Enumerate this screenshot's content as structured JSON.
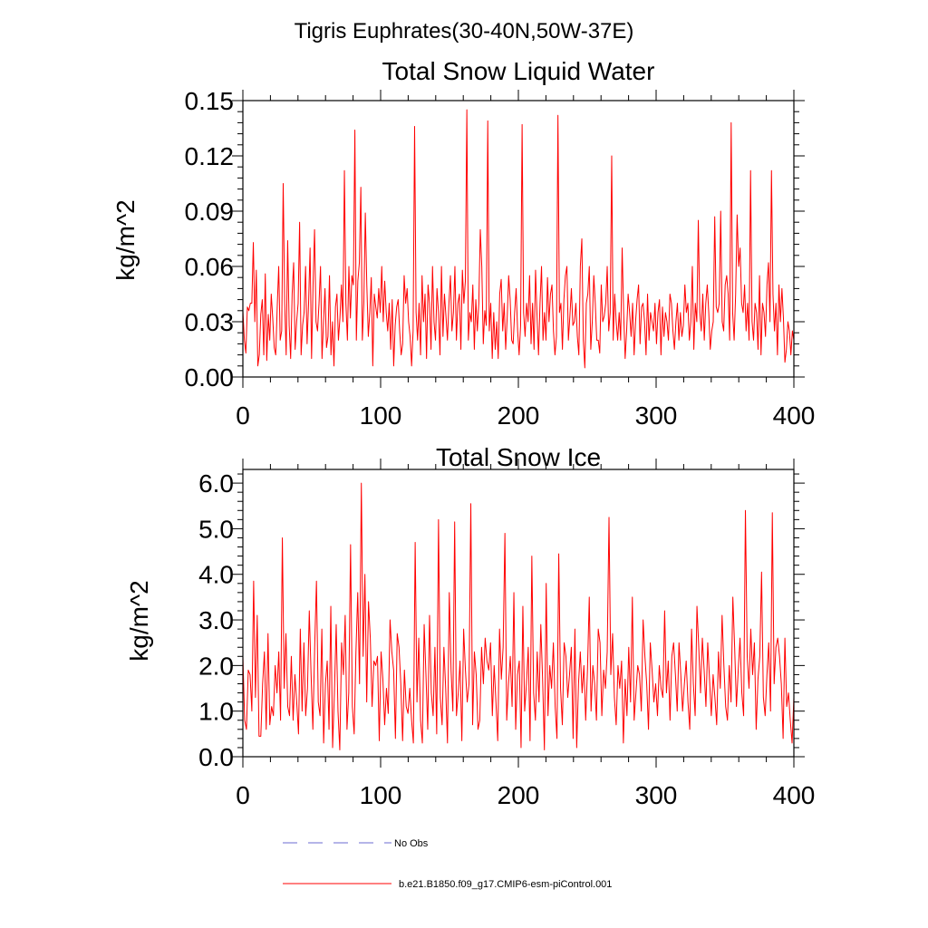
{
  "figure_title": "Tigris Euphrates(30-40N,50W-37E)",
  "chart_data": [
    {
      "type": "line",
      "title": "Total Snow Liquid Water",
      "xlabel": "",
      "ylabel": "kg/m^2",
      "xlim": [
        0,
        400
      ],
      "ylim": [
        0,
        0.15
      ],
      "xticks": [
        0,
        100,
        200,
        300,
        400
      ],
      "xtick_labels": [
        "0",
        "100",
        "200",
        "300",
        "400"
      ],
      "yticks": [
        0,
        0.03,
        0.06,
        0.09,
        0.12,
        0.15
      ],
      "ytick_labels": [
        "0.00",
        "0.03",
        "0.06",
        "0.09",
        "0.12",
        "0.15"
      ],
      "series": [
        {
          "name": "b.e21.B1850.f09_g17.CMIP6-esm-piControl.001",
          "color": "#ff0000",
          "values": [
            0.036,
            0.02,
            0.013,
            0.038,
            0.036,
            0.04,
            0.04,
            0.073,
            0.03,
            0.058,
            0.006,
            0.012,
            0.034,
            0.042,
            0.012,
            0.056,
            0.009,
            0.034,
            0.02,
            0.045,
            0.032,
            0.016,
            0.012,
            0.038,
            0.06,
            0.02,
            0.025,
            0.105,
            0.04,
            0.012,
            0.074,
            0.028,
            0.01,
            0.045,
            0.062,
            0.015,
            0.03,
            0.04,
            0.084,
            0.012,
            0.028,
            0.035,
            0.06,
            0.018,
            0.04,
            0.07,
            0.01,
            0.05,
            0.08,
            0.03,
            0.025,
            0.04,
            0.06,
            0.01,
            0.03,
            0.048,
            0.016,
            0.022,
            0.055,
            0.012,
            0.03,
            0.006,
            0.038,
            0.045,
            0.02,
            0.032,
            0.05,
            0.03,
            0.112,
            0.04,
            0.02,
            0.06,
            0.032,
            0.055,
            0.05,
            0.134,
            0.02,
            0.052,
            0.062,
            0.103,
            0.02,
            0.04,
            0.089,
            0.05,
            0.022,
            0.035,
            0.054,
            0.006,
            0.045,
            0.038,
            0.032,
            0.048,
            0.035,
            0.06,
            0.03,
            0.052,
            0.035,
            0.025,
            0.04,
            0.015,
            0.042,
            0.006,
            0.028,
            0.038,
            0.042,
            0.025,
            0.012,
            0.018,
            0.055,
            0.04,
            0.048,
            0.03,
            0.022,
            0.006,
            0.025,
            0.136,
            0.035,
            0.02,
            0.04,
            0.012,
            0.055,
            0.03,
            0.045,
            0.01,
            0.05,
            0.04,
            0.015,
            0.06,
            0.03,
            0.02,
            0.048,
            0.035,
            0.012,
            0.06,
            0.022,
            0.045,
            0.033,
            0.02,
            0.04,
            0.055,
            0.025,
            0.035,
            0.06,
            0.02,
            0.04,
            0.045,
            0.015,
            0.058,
            0.04,
            0.052,
            0.145,
            0.02,
            0.035,
            0.03,
            0.05,
            0.015,
            0.042,
            0.025,
            0.04,
            0.08,
            0.06,
            0.018,
            0.036,
            0.028,
            0.139,
            0.025,
            0.04,
            0.01,
            0.035,
            0.015,
            0.03,
            0.01,
            0.045,
            0.053,
            0.025,
            0.04,
            0.015,
            0.032,
            0.055,
            0.042,
            0.02,
            0.018,
            0.035,
            0.048,
            0.025,
            0.012,
            0.028,
            0.137,
            0.035,
            0.022,
            0.04,
            0.03,
            0.055,
            0.018,
            0.04,
            0.015,
            0.058,
            0.033,
            0.012,
            0.04,
            0.06,
            0.02,
            0.035,
            0.02,
            0.054,
            0.03,
            0.045,
            0.05,
            0.025,
            0.012,
            0.022,
            0.142,
            0.035,
            0.04,
            0.015,
            0.042,
            0.055,
            0.06,
            0.02,
            0.033,
            0.048,
            0.028,
            0.03,
            0.04,
            0.022,
            0.012,
            0.06,
            0.075,
            0.02,
            0.005,
            0.04,
            0.045,
            0.06,
            0.015,
            0.03,
            0.055,
            0.04,
            0.02,
            0.02,
            0.013,
            0.05,
            0.03,
            0.033,
            0.04,
            0.06,
            0.025,
            0.035,
            0.12,
            0.02,
            0.045,
            0.03,
            0.02,
            0.035,
            0.02,
            0.07,
            0.035,
            0.01,
            0.025,
            0.045,
            0.035,
            0.022,
            0.04,
            0.012,
            0.03,
            0.042,
            0.05,
            0.018,
            0.038,
            0.04,
            0.03,
            0.012,
            0.045,
            0.02,
            0.035,
            0.03,
            0.025,
            0.04,
            0.018,
            0.035,
            0.042,
            0.012,
            0.038,
            0.022,
            0.035,
            0.03,
            0.02,
            0.045,
            0.04,
            0.025,
            0.015,
            0.03,
            0.04,
            0.02,
            0.035,
            0.022,
            0.028,
            0.05,
            0.035,
            0.04,
            0.02,
            0.03,
            0.06,
            0.015,
            0.04,
            0.03,
            0.085,
            0.035,
            0.025,
            0.045,
            0.02,
            0.04,
            0.05,
            0.035,
            0.015,
            0.025,
            0.03,
            0.087,
            0.038,
            0.035,
            0.04,
            0.09,
            0.03,
            0.025,
            0.05,
            0.055,
            0.045,
            0.02,
            0.138,
            0.035,
            0.02,
            0.045,
            0.088,
            0.06,
            0.07,
            0.04,
            0.035,
            0.05,
            0.025,
            0.04,
            0.02,
            0.112,
            0.03,
            0.02,
            0.04,
            0.035,
            0.015,
            0.055,
            0.012,
            0.04,
            0.035,
            0.022,
            0.05,
            0.062,
            0.03,
            0.112,
            0.045,
            0.025,
            0.04,
            0.012,
            0.05,
            0.03,
            0.048,
            0.032,
            0.008,
            0.015,
            0.03,
            0.025,
            0.012,
            0.025,
            0.02
          ]
        }
      ]
    },
    {
      "type": "line",
      "title": "Total Snow Ice",
      "xlabel": "",
      "ylabel": "kg/m^2",
      "xlim": [
        0,
        400
      ],
      "ylim": [
        0,
        6.3
      ],
      "xticks": [
        0,
        100,
        200,
        300,
        400
      ],
      "xtick_labels": [
        "0",
        "100",
        "200",
        "300",
        "400"
      ],
      "yticks": [
        0,
        1,
        2,
        3,
        4,
        5,
        6
      ],
      "ytick_labels": [
        "0.0",
        "1.0",
        "2.0",
        "3.0",
        "4.0",
        "5.0",
        "6.0"
      ],
      "series": [
        {
          "name": "b.e21.B1850.f09_g17.CMIP6-esm-piControl.001",
          "color": "#ff0000",
          "values": [
            2.2,
            0.8,
            0.6,
            1.9,
            1.8,
            1.0,
            3.85,
            1.3,
            3.1,
            0.45,
            0.45,
            1.6,
            2.3,
            0.6,
            2.7,
            0.7,
            1.1,
            0.9,
            2.0,
            1.4,
            2.3,
            0.8,
            4.8,
            1.5,
            2.7,
            1.1,
            0.9,
            2.2,
            0.8,
            1.8,
            1.2,
            0.5,
            2.8,
            1.0,
            2.5,
            0.9,
            1.5,
            3.2,
            1.8,
            0.6,
            2.4,
            3.85,
            1.2,
            0.9,
            2.8,
            0.3,
            1.6,
            2.1,
            0.6,
            3.3,
            0.2,
            1.4,
            2.9,
            1.0,
            0.15,
            2.5,
            1.8,
            3.1,
            0.6,
            1.4,
            4.65,
            1.1,
            0.5,
            2.3,
            3.6,
            1.6,
            6.0,
            2.2,
            4.0,
            1.2,
            3.4,
            2.6,
            1.1,
            2.1,
            2.0,
            2.2,
            0.35,
            2.3,
            1.7,
            0.7,
            1.5,
            0.95,
            3.0,
            2.3,
            1.9,
            0.4,
            2.7,
            2.4,
            1.6,
            0.35,
            1.9,
            1.1,
            0.95,
            1.5,
            0.8,
            0.3,
            4.7,
            1.2,
            2.6,
            0.8,
            0.3,
            2.9,
            1.8,
            0.6,
            3.1,
            1.4,
            0.9,
            2.4,
            0.5,
            5.2,
            1.3,
            0.7,
            2.4,
            1.5,
            0.3,
            3.6,
            1.9,
            1.0,
            5.15,
            0.9,
            1.4,
            2.1,
            0.35,
            2.8,
            1.9,
            1.2,
            1.6,
            5.55,
            0.7,
            2.3,
            1.8,
            0.6,
            0.8,
            2.4,
            1.6,
            2.6,
            2.1,
            1.9,
            2.5,
            0.9,
            2.0,
            1.2,
            0.35,
            2.8,
            1.7,
            2.4,
            4.9,
            0.8,
            1.6,
            2.2,
            1.1,
            3.6,
            0.6,
            1.8,
            2.1,
            0.2,
            3.3,
            1.0,
            1.6,
            2.4,
            0.35,
            4.4,
            1.4,
            0.8,
            2.3,
            1.2,
            2.9,
            1.7,
            0.15,
            3.8,
            0.9,
            2.0,
            1.5,
            2.5,
            1.1,
            0.4,
            4.45,
            1.5,
            0.7,
            2.5,
            2.2,
            1.3,
            1.8,
            2.4,
            0.4,
            2.8,
            0.2,
            1.6,
            2.3,
            1.4,
            2.0,
            0.8,
            1.9,
            3.5,
            1.0,
            2.0,
            1.6,
            0.8,
            2.8,
            2.5,
            0.9,
            1.9,
            1.5,
            2.3,
            5.25,
            1.8,
            2.7,
            1.3,
            0.7,
            2.0,
            1.5,
            2.1,
            0.3,
            1.7,
            0.9,
            2.4,
            1.2,
            3.5,
            0.8,
            1.4,
            2.0,
            1.8,
            1.0,
            3.0,
            2.2,
            1.6,
            0.6,
            2.5,
            1.9,
            1.2,
            1.6,
            0.9,
            2.0,
            1.5,
            1.3,
            3.2,
            1.4,
            2.1,
            0.8,
            2.2,
            2.5,
            1.8,
            1.0,
            2.5,
            1.8,
            1.0,
            1.6,
            2.1,
            1.2,
            0.6,
            2.8,
            1.6,
            0.9,
            3.3,
            2.4,
            1.4,
            2.6,
            1.9,
            1.1,
            2.5,
            1.7,
            0.9,
            1.8,
            1.3,
            0.7,
            2.3,
            1.5,
            3.1,
            2.0,
            1.1,
            0.8,
            2.0,
            1.2,
            3.5,
            2.4,
            1.1,
            1.9,
            2.6,
            1.4,
            0.9,
            5.4,
            2.2,
            1.5,
            2.8,
            1.8,
            2.5,
            0.6,
            1.7,
            2.2,
            4.05,
            1.3,
            0.9,
            1.8,
            2.5,
            1.0,
            5.35,
            1.6,
            2.4,
            2.6,
            2.2,
            1.6,
            0.4,
            2.6,
            1.1,
            1.4,
            0.8,
            0.3,
            1.3
          ]
        }
      ]
    }
  ],
  "legend": [
    {
      "label": "No Obs",
      "color": "#6b6bd0",
      "style": "dashed"
    },
    {
      "label": "b.e21.B1850.f09_g17.CMIP6-esm-piControl.001",
      "color": "#ff0000",
      "style": "solid"
    }
  ]
}
